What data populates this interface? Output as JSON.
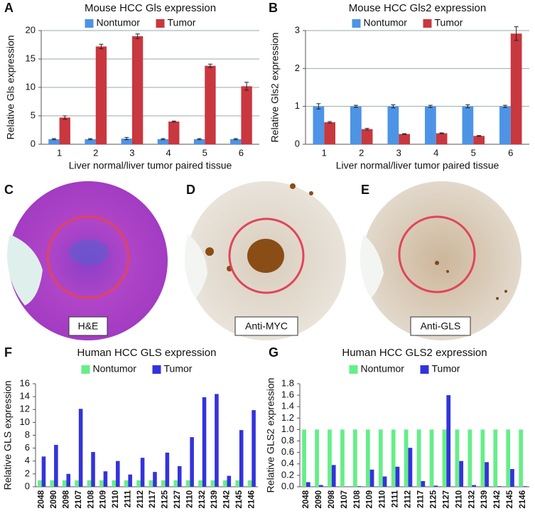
{
  "chart_data": [
    {
      "type": "bar",
      "panel": "A",
      "title": "Mouse HCC Gls expression",
      "ylabel": "Relative Gls expression",
      "xlabel": "Liver normal/liver tumor paired tissue",
      "categories": [
        "1",
        "2",
        "3",
        "4",
        "5",
        "6"
      ],
      "series": [
        {
          "name": "Nontumor",
          "color": "#4d94e6",
          "values": [
            0.9,
            0.9,
            1.0,
            0.9,
            0.9,
            0.9
          ],
          "errors": [
            0.1,
            0.1,
            0.2,
            0.1,
            0.1,
            0.1
          ]
        },
        {
          "name": "Tumor",
          "color": "#c9373f",
          "values": [
            4.7,
            17.2,
            19.0,
            4.0,
            13.8,
            10.2
          ],
          "errors": [
            0.3,
            0.4,
            0.4,
            0.1,
            0.3,
            0.7
          ]
        }
      ],
      "ylim": [
        0,
        20
      ],
      "yticks": [
        0,
        5,
        10,
        15,
        20
      ],
      "grid": true
    },
    {
      "type": "bar",
      "panel": "B",
      "title": "Mouse HCC Gls2 expression",
      "ylabel": "Relative Gls2 expression",
      "xlabel": "Liver normal/liver tumor paired tissue",
      "categories": [
        "1",
        "2",
        "3",
        "4",
        "5",
        "6"
      ],
      "series": [
        {
          "name": "Nontumor",
          "color": "#4d94e6",
          "values": [
            1.0,
            1.0,
            1.0,
            1.0,
            1.0,
            1.0
          ],
          "errors": [
            0.07,
            0.03,
            0.04,
            0.03,
            0.04,
            0.03
          ]
        },
        {
          "name": "Tumor",
          "color": "#c9373f",
          "values": [
            0.58,
            0.4,
            0.27,
            0.29,
            0.22,
            2.92
          ],
          "errors": [
            0.02,
            0.02,
            0.01,
            0.01,
            0.01,
            0.18
          ]
        }
      ],
      "ylim": [
        0,
        3
      ],
      "yticks": [
        0,
        1,
        2,
        3
      ],
      "grid": true
    },
    {
      "type": "bar",
      "panel": "F",
      "title": "Human HCC GLS expression",
      "ylabel": "Relative GLS expression",
      "categories": [
        "2048",
        "2090",
        "2098",
        "2107",
        "2108",
        "2109",
        "2110",
        "2111",
        "2112",
        "2117",
        "2125",
        "2127",
        "2110",
        "2132",
        "2139",
        "2142",
        "2145",
        "2146"
      ],
      "series": [
        {
          "name": "Nontumor",
          "color": "#66ee88",
          "values": [
            1,
            1,
            1,
            1,
            1,
            1,
            1,
            1,
            1,
            1,
            1,
            1,
            1,
            1,
            1,
            1,
            1,
            1
          ]
        },
        {
          "name": "Tumor",
          "color": "#3333dd",
          "values": [
            4.7,
            6.5,
            2.0,
            12.1,
            5.4,
            2.4,
            4.0,
            1.9,
            4.5,
            2.3,
            5.3,
            3.2,
            7.7,
            13.9,
            14.4,
            1.7,
            8.8,
            11.9
          ]
        }
      ],
      "ylim": [
        0,
        16
      ],
      "yticks": [
        0,
        2,
        4,
        6,
        8,
        10,
        12,
        14,
        16
      ],
      "grid": false
    },
    {
      "type": "bar",
      "panel": "G",
      "title": "Human HCC GLS2 expression",
      "ylabel": "Relative GLS2 expression",
      "categories": [
        "2048",
        "2090",
        "2098",
        "2107",
        "2108",
        "2109",
        "2110",
        "2111",
        "2112",
        "2117",
        "2125",
        "2127",
        "2110",
        "2132",
        "2139",
        "2142",
        "2145",
        "2146"
      ],
      "series": [
        {
          "name": "Nontumor",
          "color": "#66ee88",
          "values": [
            1.0,
            1.0,
            1.0,
            1.0,
            1.0,
            1.0,
            1.0,
            1.0,
            1.0,
            1.0,
            1.0,
            1.0,
            1.0,
            1.0,
            1.0,
            1.0,
            1.0,
            1.0
          ]
        },
        {
          "name": "Tumor",
          "color": "#3333dd",
          "values": [
            0.08,
            0.03,
            0.38,
            0.0,
            0.01,
            0.3,
            0.18,
            0.35,
            0.68,
            0.1,
            0.02,
            1.6,
            0.45,
            0.03,
            0.43,
            0.01,
            0.31,
            0.01
          ]
        }
      ],
      "ylim": [
        0,
        1.8
      ],
      "yticks": [
        {
          "value": 0,
          "label": "0.0"
        },
        0.2,
        0.4,
        0.6,
        0.8,
        {
          "value": 1,
          "label": "1.0"
        },
        1.2,
        1.4,
        1.6,
        1.8
      ],
      "grid": false
    }
  ],
  "image_panels": [
    {
      "panel": "C",
      "caption": "H&E"
    },
    {
      "panel": "D",
      "caption": "Anti-MYC"
    },
    {
      "panel": "E",
      "caption": "Anti-GLS"
    }
  ]
}
